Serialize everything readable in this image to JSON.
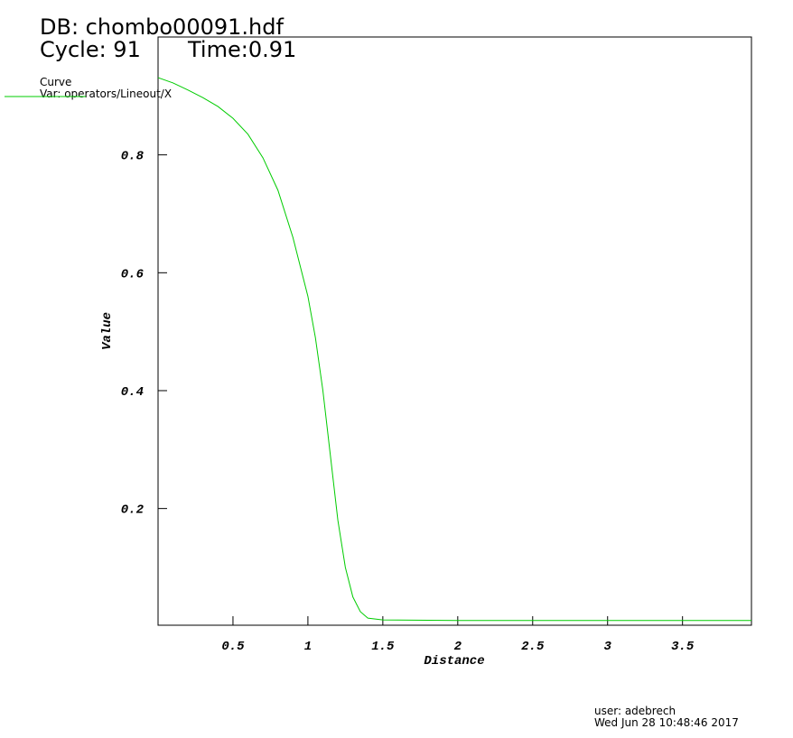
{
  "chart_data": {
    "type": "line",
    "db_label": "DB: chombo00091.hdf",
    "cycle_label": "Cycle: 91",
    "time_label": "Time:0.91",
    "legend_title": "Curve",
    "x_label": "Distance",
    "y_label": "Value",
    "user_label": "user: adebrech",
    "date_label": "Wed Jun 28 10:48:46 2017",
    "x": [
      0,
      0.1,
      0.2,
      0.3,
      0.4,
      0.5,
      0.6,
      0.7,
      0.8,
      0.9,
      1.0,
      1.05,
      1.1,
      1.15,
      1.2,
      1.25,
      1.3,
      1.35,
      1.4,
      1.5,
      2.0,
      3.96
    ],
    "series": [
      {
        "name": "Var: operators/Lineout/X",
        "color": "#00cc00",
        "values": [
          0.931,
          0.922,
          0.91,
          0.897,
          0.882,
          0.862,
          0.835,
          0.795,
          0.74,
          0.66,
          0.56,
          0.49,
          0.4,
          0.29,
          0.18,
          0.1,
          0.05,
          0.025,
          0.014,
          0.011,
          0.01,
          0.01
        ]
      }
    ],
    "xlim": [
      0,
      3.96
    ],
    "ylim": [
      0.002,
      1.0
    ],
    "xticks": [
      0.5,
      1.0,
      1.5,
      2.0,
      2.5,
      3.0,
      3.5
    ],
    "yticks": [
      0.2,
      0.4,
      0.6,
      0.8
    ]
  }
}
